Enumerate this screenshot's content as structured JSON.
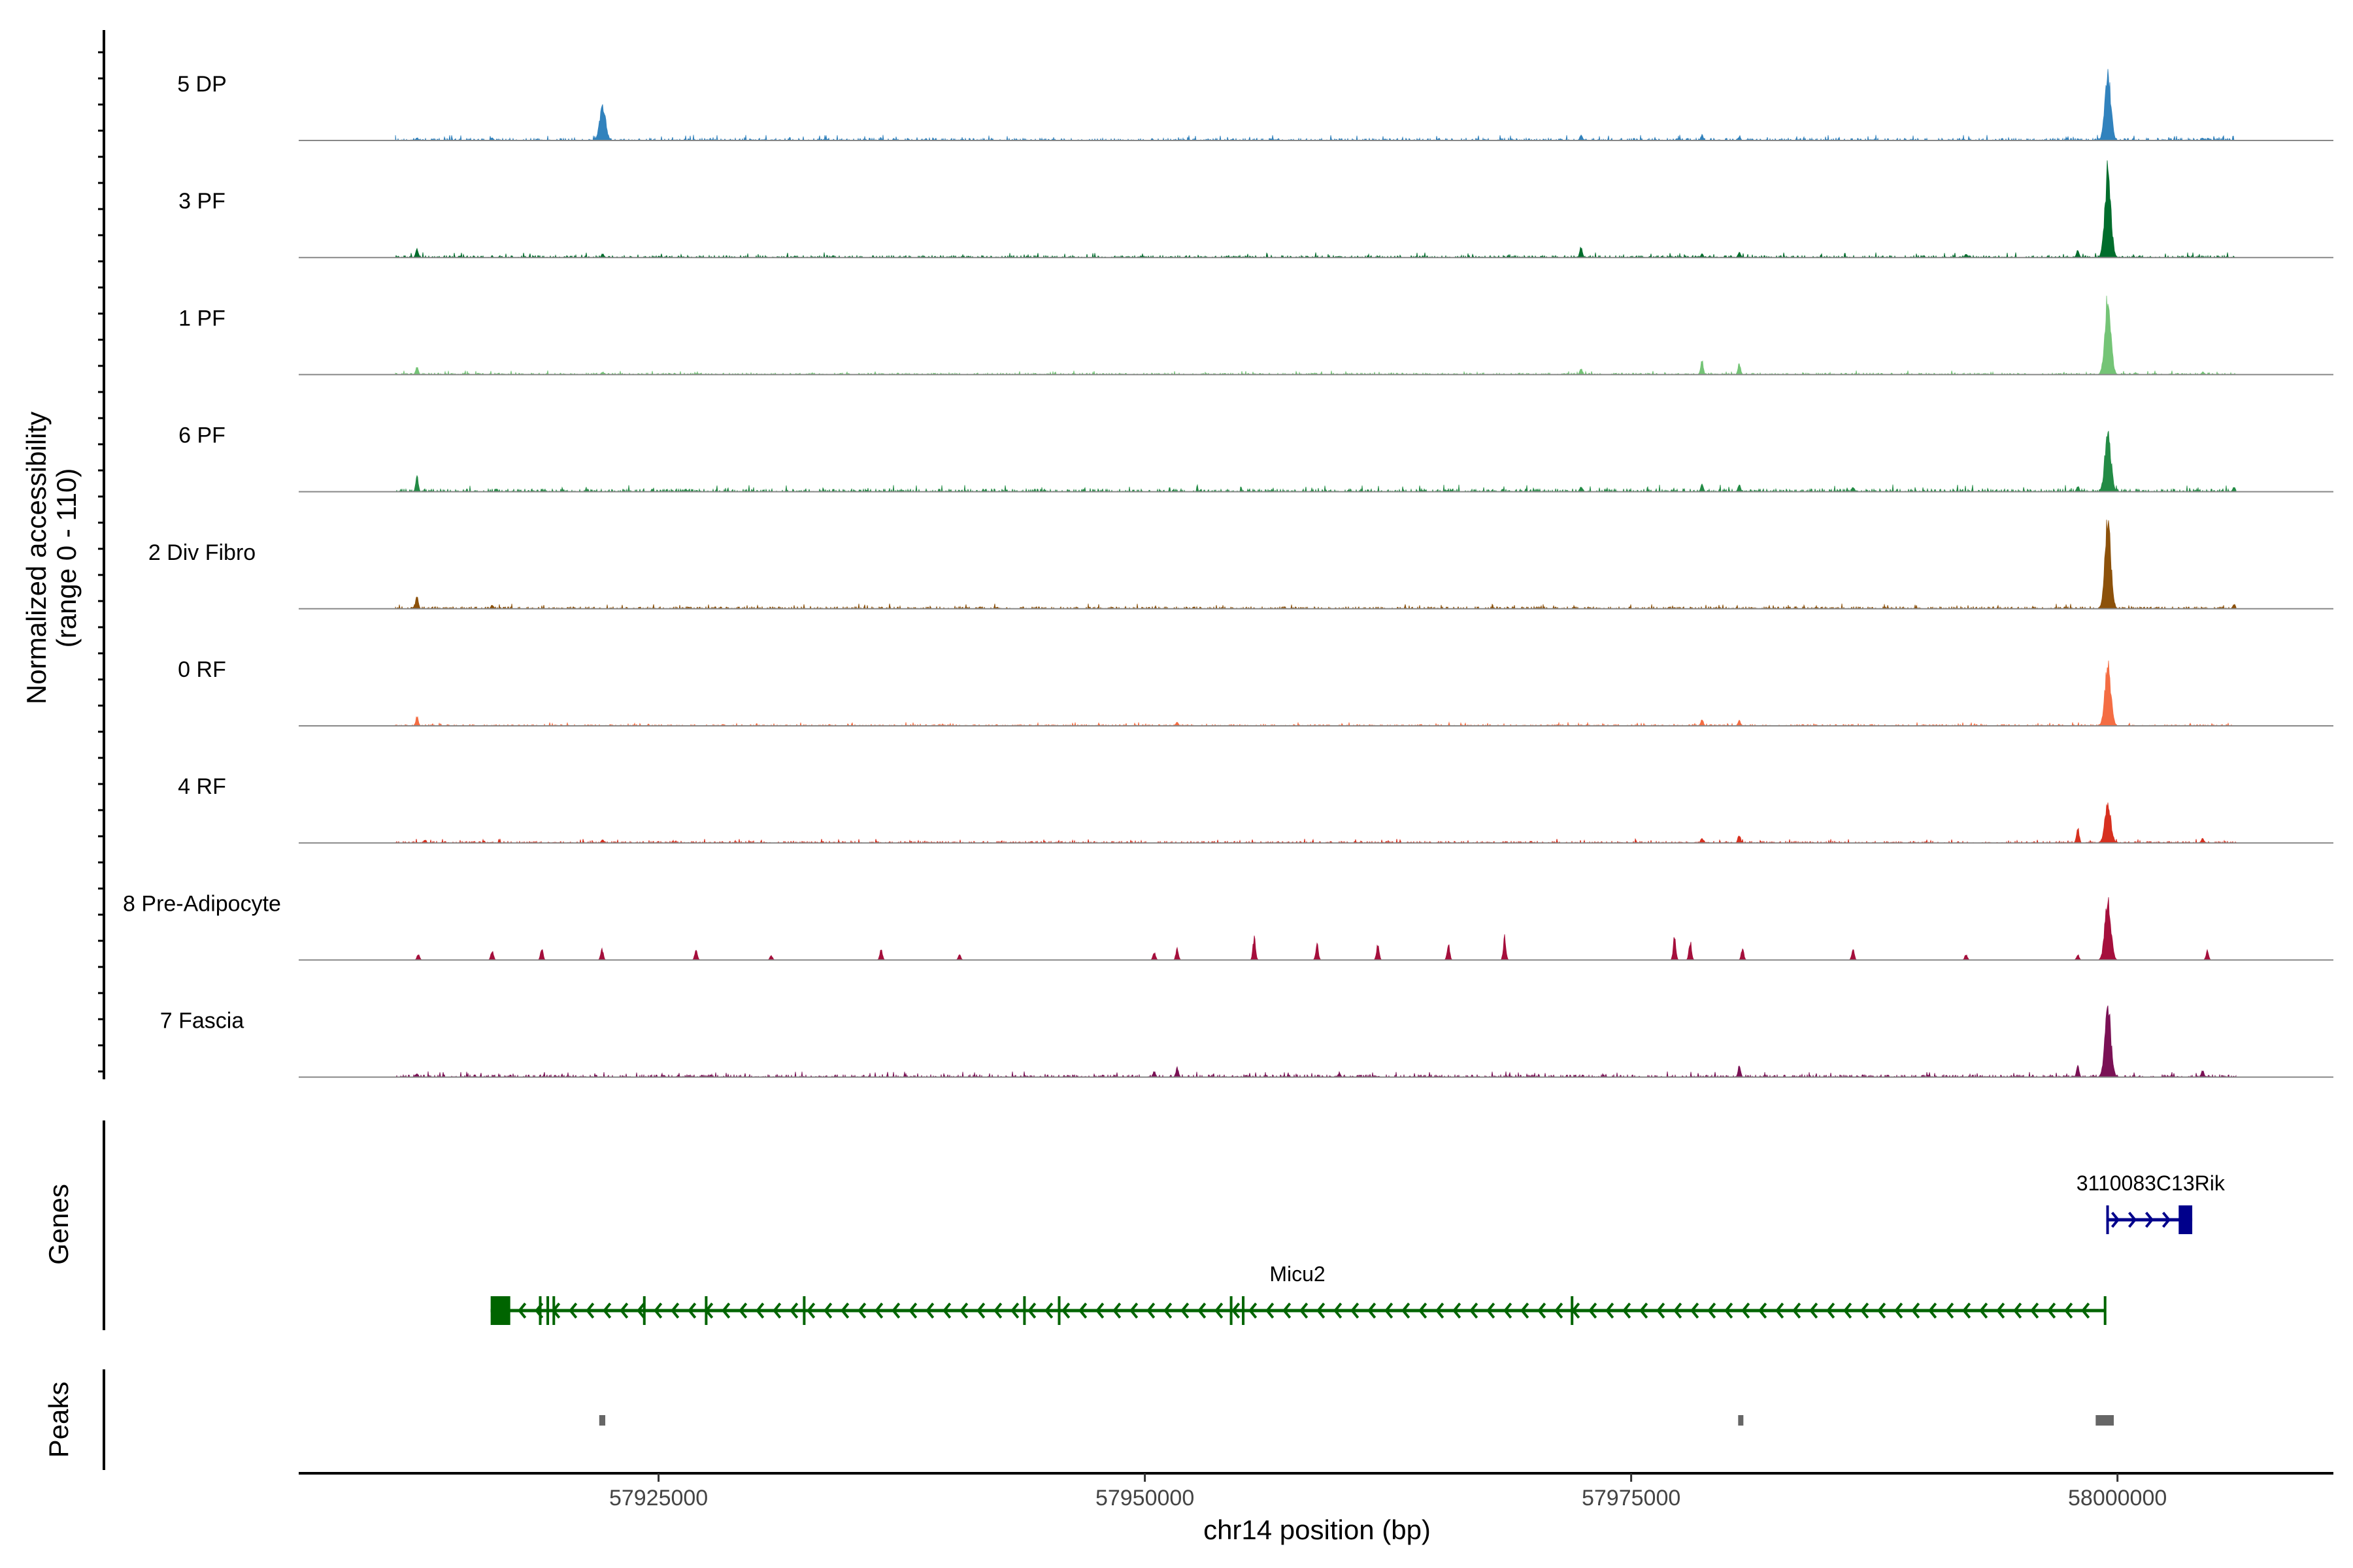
{
  "chart_data": {
    "type": "area",
    "title": "",
    "xlabel": "chr14 position (bp)",
    "ylabel_line1": "Normalized accessibility",
    "ylabel_line2": "(range 0 - 110)",
    "ylim": [
      0,
      110
    ],
    "xlim": [
      57906500,
      58011100
    ],
    "x_ticks": [
      57925000,
      57950000,
      57975000,
      58000000
    ],
    "x_tick_labels": [
      "57925000",
      "57950000",
      "57975000",
      "58000000"
    ],
    "signal_span": [
      57911480,
      58006090
    ],
    "tracks": [
      {
        "name": "5 DP",
        "color": "#3182bd",
        "noise": 2.2,
        "peaks": [
          [
            57912567,
            3
          ],
          [
            57916445,
            3
          ],
          [
            57922110,
            40
          ],
          [
            57972442,
            6
          ],
          [
            57978625,
            6
          ],
          [
            57980573,
            4
          ],
          [
            57999496,
            73
          ],
          [
            58004396,
            3
          ]
        ]
      },
      {
        "name": "3 PF",
        "color": "#006d2c",
        "noise": 2.0,
        "peaks": [
          [
            57912567,
            10
          ],
          [
            57922110,
            4
          ],
          [
            57972442,
            12
          ],
          [
            57978625,
            4
          ],
          [
            57980573,
            6
          ],
          [
            57992211,
            4
          ],
          [
            57997950,
            8
          ],
          [
            57999496,
            96
          ]
        ]
      },
      {
        "name": "1 PF",
        "color": "#74c476",
        "noise": 1.6,
        "peaks": [
          [
            57912567,
            8
          ],
          [
            57922110,
            3
          ],
          [
            57972442,
            7
          ],
          [
            57978625,
            15
          ],
          [
            57980573,
            12
          ],
          [
            57999496,
            85
          ],
          [
            58004396,
            3
          ]
        ]
      },
      {
        "name": "6 PF",
        "color": "#238b45",
        "noise": 2.8,
        "peaks": [
          [
            57912567,
            16
          ],
          [
            57972442,
            6
          ],
          [
            57978625,
            8
          ],
          [
            57980573,
            8
          ],
          [
            57986395,
            5
          ],
          [
            57997950,
            6
          ],
          [
            57999496,
            65
          ],
          [
            58006000,
            5
          ]
        ]
      },
      {
        "name": "2 Div Fibro",
        "color": "#8c510a",
        "noise": 2.0,
        "peaks": [
          [
            57912567,
            14
          ],
          [
            57916445,
            4
          ],
          [
            57999496,
            96
          ],
          [
            58006000,
            5
          ]
        ]
      },
      {
        "name": "0 RF",
        "color": "#f46d43",
        "noise": 1.4,
        "peaks": [
          [
            57912567,
            10
          ],
          [
            57951653,
            4
          ],
          [
            57978625,
            7
          ],
          [
            57980573,
            6
          ],
          [
            57999496,
            65
          ]
        ]
      },
      {
        "name": "4 RF",
        "color": "#d7301f",
        "noise": 1.6,
        "peaks": [
          [
            57913000,
            3
          ],
          [
            57922110,
            4
          ],
          [
            57978625,
            5
          ],
          [
            57980573,
            9
          ],
          [
            57997950,
            17
          ],
          [
            57999496,
            42
          ],
          [
            58004396,
            5
          ]
        ]
      },
      {
        "name": "8 Pre-Adipocyte",
        "color": "#a50f3c",
        "noise": 0,
        "peaks": [
          [
            57912645,
            6
          ],
          [
            57916445,
            10
          ],
          [
            57919004,
            12
          ],
          [
            57922106,
            12
          ],
          [
            57926914,
            12
          ],
          [
            57930791,
            5
          ],
          [
            57936452,
            12
          ],
          [
            57940484,
            6
          ],
          [
            57950488,
            8
          ],
          [
            57951653,
            12
          ],
          [
            57955608,
            25
          ],
          [
            57958865,
            17
          ],
          [
            57961967,
            17
          ],
          [
            57965612,
            17
          ],
          [
            57968481,
            25
          ],
          [
            57977244,
            25
          ],
          [
            57978020,
            20
          ],
          [
            57980734,
            12
          ],
          [
            57986395,
            12
          ],
          [
            57992211,
            6
          ],
          [
            57997950,
            6
          ],
          [
            57999501,
            65
          ],
          [
            58004620,
            10
          ]
        ]
      },
      {
        "name": "7 Fascia",
        "color": "#7a1155",
        "noise": 2.2,
        "peaks": [
          [
            57912567,
            4
          ],
          [
            57950488,
            6
          ],
          [
            57951653,
            10
          ],
          [
            57960000,
            4
          ],
          [
            57980573,
            12
          ],
          [
            57997950,
            12
          ],
          [
            57999496,
            77
          ],
          [
            58004396,
            7
          ]
        ]
      }
    ],
    "genes_panel_label": "Genes",
    "genes": [
      {
        "name": "Micu2",
        "strand": "-",
        "color": "#006400",
        "start": 57916368,
        "end": 57999346,
        "exons": [
          [
            57916368,
            57917376
          ],
          [
            57918849,
            57918900
          ],
          [
            57919237,
            57919290
          ],
          [
            57919547,
            57919600
          ],
          [
            57924200,
            57924250
          ],
          [
            57927380,
            57927430
          ],
          [
            57932420,
            57932470
          ],
          [
            57943743,
            57943793
          ],
          [
            57945527,
            57945577
          ],
          [
            57954368,
            57954418
          ],
          [
            57954988,
            57955038
          ],
          [
            57971894,
            57971944
          ],
          [
            57999296,
            57999346
          ]
        ]
      },
      {
        "name": "3110083C13Rik",
        "strand": "+",
        "color": "#00008b",
        "start": 57999424,
        "end": 58003844,
        "exons": [
          [
            57999424,
            57999474
          ],
          [
            58003146,
            58003844
          ]
        ]
      }
    ],
    "peaks_panel_label": "Peaks",
    "peak_regions": [
      [
        57921950,
        57922260
      ],
      [
        57980500,
        57980650
      ],
      [
        57998880,
        57999810
      ]
    ],
    "peak_color": "#666666"
  }
}
